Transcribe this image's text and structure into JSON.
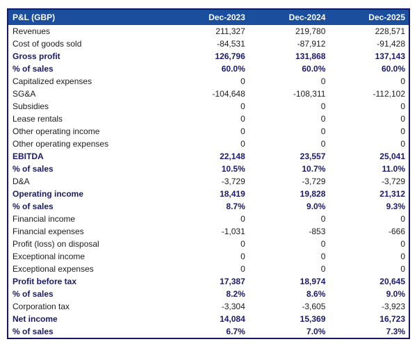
{
  "colors": {
    "header_bg": "#1B4E9C",
    "border": "#16166B",
    "bold_row_text": "#191970",
    "normal_text": "#1b1b1b",
    "header_text": "#ffffff"
  },
  "chart_data": {
    "type": "table",
    "title": "P&L (GBP)",
    "columns": [
      "Dec-2023",
      "Dec-2024",
      "Dec-2025"
    ],
    "rows": [
      {
        "label": "Revenues",
        "values": [
          "211,327",
          "219,780",
          "228,571"
        ],
        "bold": false
      },
      {
        "label": "Cost of goods sold",
        "values": [
          "-84,531",
          "-87,912",
          "-91,428"
        ],
        "bold": false
      },
      {
        "label": "Gross profit",
        "values": [
          "126,796",
          "131,868",
          "137,143"
        ],
        "bold": true
      },
      {
        "label": "% of sales",
        "values": [
          "60.0%",
          "60.0%",
          "60.0%"
        ],
        "bold": true
      },
      {
        "label": "Capitalized expenses",
        "values": [
          "0",
          "0",
          "0"
        ],
        "bold": false
      },
      {
        "label": "SG&A",
        "values": [
          "-104,648",
          "-108,311",
          "-112,102"
        ],
        "bold": false
      },
      {
        "label": "Subsidies",
        "values": [
          "0",
          "0",
          "0"
        ],
        "bold": false
      },
      {
        "label": "Lease rentals",
        "values": [
          "0",
          "0",
          "0"
        ],
        "bold": false
      },
      {
        "label": "Other operating income",
        "values": [
          "0",
          "0",
          "0"
        ],
        "bold": false
      },
      {
        "label": "Other operating expenses",
        "values": [
          "0",
          "0",
          "0"
        ],
        "bold": false
      },
      {
        "label": "EBITDA",
        "values": [
          "22,148",
          "23,557",
          "25,041"
        ],
        "bold": true
      },
      {
        "label": "% of sales",
        "values": [
          "10.5%",
          "10.7%",
          "11.0%"
        ],
        "bold": true
      },
      {
        "label": "D&A",
        "values": [
          "-3,729",
          "-3,729",
          "-3,729"
        ],
        "bold": false
      },
      {
        "label": "Operating income",
        "values": [
          "18,419",
          "19,828",
          "21,312"
        ],
        "bold": true
      },
      {
        "label": "% of sales",
        "values": [
          "8.7%",
          "9.0%",
          "9.3%"
        ],
        "bold": true
      },
      {
        "label": "Financial income",
        "values": [
          "0",
          "0",
          "0"
        ],
        "bold": false
      },
      {
        "label": "Financial expenses",
        "values": [
          "-1,031",
          "-853",
          "-666"
        ],
        "bold": false
      },
      {
        "label": "Profit (loss) on disposal",
        "values": [
          "0",
          "0",
          "0"
        ],
        "bold": false
      },
      {
        "label": "Exceptional income",
        "values": [
          "0",
          "0",
          "0"
        ],
        "bold": false
      },
      {
        "label": "Exceptional expenses",
        "values": [
          "0",
          "0",
          "0"
        ],
        "bold": false
      },
      {
        "label": "Profit before tax",
        "values": [
          "17,387",
          "18,974",
          "20,645"
        ],
        "bold": true
      },
      {
        "label": "% of sales",
        "values": [
          "8.2%",
          "8.6%",
          "9.0%"
        ],
        "bold": true
      },
      {
        "label": "Corporation tax",
        "values": [
          "-3,304",
          "-3,605",
          "-3,923"
        ],
        "bold": false
      },
      {
        "label": "Net income",
        "values": [
          "14,084",
          "15,369",
          "16,723"
        ],
        "bold": true
      },
      {
        "label": "% of sales",
        "values": [
          "6.7%",
          "7.0%",
          "7.3%"
        ],
        "bold": true
      }
    ]
  }
}
